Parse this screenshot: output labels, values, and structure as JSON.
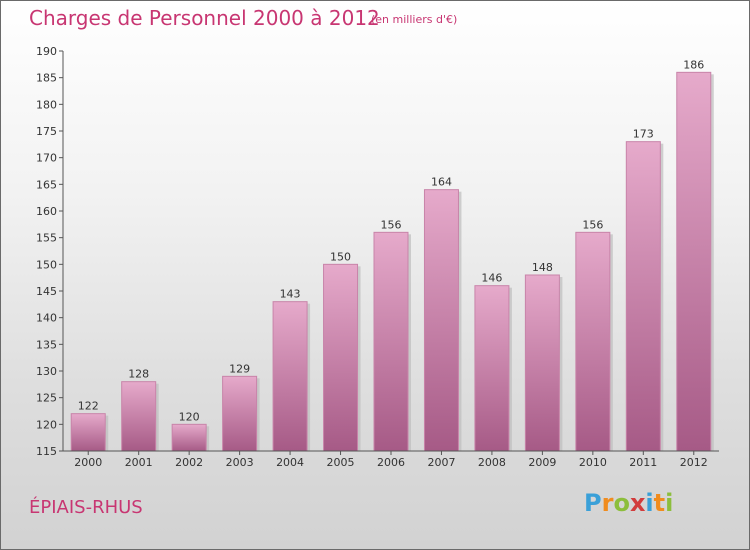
{
  "title": "Charges de Personnel 2000 à 2012",
  "subtitle": "(en milliers d'€)",
  "town": "ÉPIAIS-RHUS",
  "logo": {
    "text": "Proxiti",
    "letter_colors": [
      "#3aa0d8",
      "#f08c1e",
      "#8cbe3c",
      "#d23c3c",
      "#3aa0d8",
      "#f08c1e",
      "#8cbe3c"
    ]
  },
  "colors": {
    "bar_light": "#e6aacb",
    "bar_dark": "#a65a86",
    "text_accent": "#c83672",
    "axis": "#555555"
  },
  "chart_data": {
    "type": "bar",
    "categories": [
      "2000",
      "2001",
      "2002",
      "2003",
      "2004",
      "2005",
      "2006",
      "2007",
      "2008",
      "2009",
      "2010",
      "2011",
      "2012"
    ],
    "values": [
      122,
      128,
      120,
      129,
      143,
      150,
      156,
      164,
      146,
      148,
      156,
      173,
      186
    ],
    "title": "Charges de Personnel 2000 à 2012",
    "ylim": [
      115,
      190
    ],
    "yticks": [
      115,
      120,
      125,
      130,
      135,
      140,
      145,
      150,
      155,
      160,
      165,
      170,
      175,
      180,
      185,
      190
    ],
    "grid": false
  }
}
